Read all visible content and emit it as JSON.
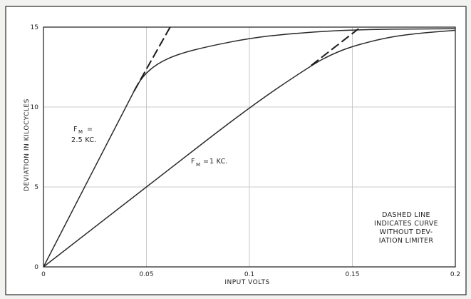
{
  "chart_data": {
    "type": "line",
    "xlabel": "INPUT VOLTS",
    "ylabel": "DEVIATION IN KILOCYCLES",
    "xlim": [
      0,
      0.2
    ],
    "ylim": [
      0,
      15
    ],
    "grid": true,
    "x_ticks": [
      "0",
      "0.05",
      "0.1",
      "0.15",
      "0.2"
    ],
    "y_ticks": [
      "0",
      "5",
      "10",
      "15"
    ],
    "series": [
      {
        "name": "F_M = 2.5 KC.",
        "label_main": "F",
        "label_sub": "M",
        "label_eq": "=",
        "label_value": "2.5 KC.",
        "x": [
          0,
          0.044,
          0.048,
          0.055,
          0.065,
          0.08,
          0.1,
          0.12,
          0.15,
          0.2
        ],
        "y": [
          0,
          11.0,
          11.9,
          12.7,
          13.3,
          13.8,
          14.3,
          14.6,
          14.85,
          14.9
        ],
        "dashed_x": [
          0.044,
          0.0615
        ],
        "dashed_y": [
          11.0,
          15.0
        ]
      },
      {
        "name": "F_M = 1 KC.",
        "label_main": "F",
        "label_sub": "M",
        "label_eq": "=",
        "label_value": "1 KC.",
        "x": [
          0,
          0.05,
          0.1,
          0.13,
          0.14,
          0.15,
          0.165,
          0.18,
          0.2
        ],
        "y": [
          0,
          5.0,
          10.0,
          12.6,
          13.3,
          13.8,
          14.3,
          14.6,
          14.8
        ],
        "dashed_x": [
          0.13,
          0.153
        ],
        "dashed_y": [
          12.6,
          14.9
        ]
      }
    ],
    "annotation": [
      "DASHED LINE",
      "INDICATES CURVE",
      "WITHOUT DEV-",
      "IATION LIMITER"
    ]
  }
}
